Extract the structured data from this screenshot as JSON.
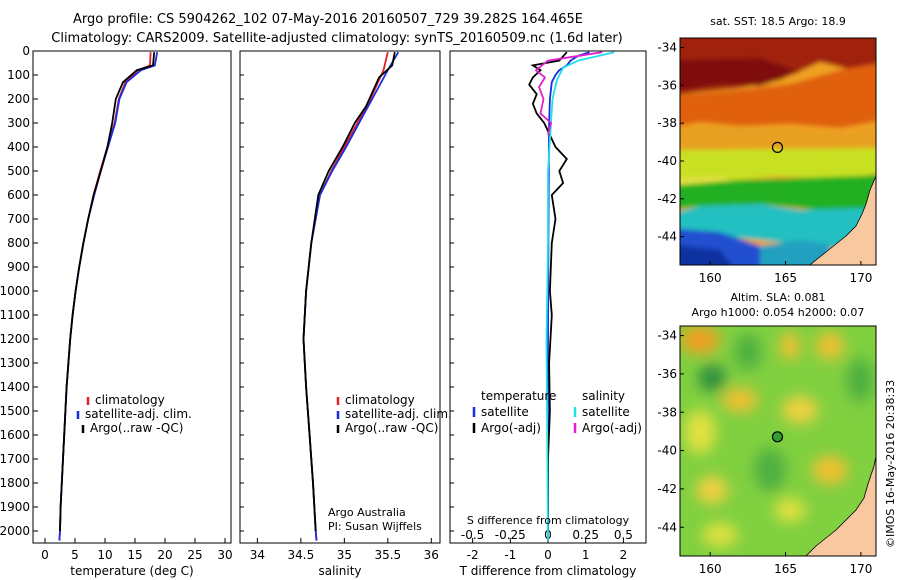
{
  "header": {
    "line1": "Argo profile: CS 5904262_102 07-May-2016 20160507_729 39.282S 164.465E",
    "line2": "Climatology: CARS2009. Satellite-adjusted climatology: synTS_20160509.nc (1.6d later)"
  },
  "colors": {
    "climatology": "#e0202a",
    "satellite": "#1a2de0",
    "argo": "#000000",
    "sat_salinity": "#20e0e8",
    "argo_salinity_adj": "#e020d0"
  },
  "chart_data": [
    {
      "type": "line",
      "panel": "temperature",
      "xlabel": "temperature (deg C)",
      "ylabel": "",
      "xlim": [
        -2,
        31
      ],
      "ylim": [
        2050,
        0
      ],
      "xticks": [
        0,
        5,
        10,
        15,
        20,
        25,
        30
      ],
      "yticks": [
        0,
        100,
        200,
        300,
        400,
        500,
        600,
        700,
        800,
        900,
        1000,
        1100,
        1200,
        1300,
        1400,
        1500,
        1600,
        1700,
        1800,
        1900,
        2000
      ],
      "legend": [
        "climatology",
        "satellite-adj. clim.",
        "Argo(..raw -QC)"
      ],
      "legend_position": "lower-center",
      "series": [
        {
          "name": "climatology",
          "color": "#e0202a",
          "points": [
            [
              17.6,
              5
            ],
            [
              17.5,
              60
            ],
            [
              15.5,
              80
            ],
            [
              13.4,
              130
            ],
            [
              12.3,
              200
            ],
            [
              11.6,
              300
            ],
            [
              10.4,
              400
            ],
            [
              9.2,
              500
            ],
            [
              8.1,
              600
            ],
            [
              7.2,
              700
            ],
            [
              6.4,
              800
            ],
            [
              5.7,
              900
            ],
            [
              5.1,
              1000
            ],
            [
              4.6,
              1100
            ],
            [
              4.2,
              1200
            ],
            [
              3.9,
              1300
            ],
            [
              3.6,
              1400
            ],
            [
              3.4,
              1500
            ],
            [
              3.2,
              1600
            ],
            [
              3.0,
              1700
            ],
            [
              2.8,
              1800
            ],
            [
              2.6,
              1900
            ],
            [
              2.5,
              2000
            ],
            [
              2.4,
              2040
            ]
          ]
        },
        {
          "name": "satellite-adj. clim.",
          "color": "#1a2de0",
          "points": [
            [
              18.7,
              5
            ],
            [
              18.3,
              60
            ],
            [
              16.0,
              80
            ],
            [
              13.6,
              130
            ],
            [
              12.4,
              200
            ],
            [
              11.7,
              300
            ],
            [
              10.5,
              400
            ],
            [
              9.3,
              500
            ],
            [
              8.2,
              600
            ],
            [
              7.2,
              700
            ],
            [
              6.4,
              800
            ],
            [
              5.7,
              900
            ],
            [
              5.1,
              1000
            ],
            [
              4.6,
              1100
            ],
            [
              4.2,
              1200
            ],
            [
              3.9,
              1300
            ],
            [
              3.6,
              1400
            ],
            [
              3.4,
              1500
            ],
            [
              3.2,
              1600
            ],
            [
              3.0,
              1700
            ],
            [
              2.8,
              1800
            ],
            [
              2.6,
              1900
            ],
            [
              2.5,
              2000
            ],
            [
              2.4,
              2040
            ]
          ]
        },
        {
          "name": "Argo(..raw -QC)",
          "color": "#000000",
          "points": [
            [
              18.2,
              5
            ],
            [
              18.0,
              60
            ],
            [
              15.3,
              80
            ],
            [
              13.0,
              130
            ],
            [
              11.8,
              200
            ],
            [
              11.2,
              300
            ],
            [
              10.4,
              400
            ],
            [
              9.3,
              500
            ],
            [
              8.1,
              600
            ],
            [
              7.2,
              700
            ],
            [
              6.4,
              800
            ],
            [
              5.7,
              900
            ],
            [
              5.1,
              1000
            ],
            [
              4.6,
              1100
            ],
            [
              4.2,
              1200
            ],
            [
              3.9,
              1300
            ],
            [
              3.6,
              1400
            ],
            [
              3.4,
              1500
            ],
            [
              3.2,
              1600
            ],
            [
              3.0,
              1700
            ],
            [
              2.8,
              1800
            ],
            [
              2.6,
              1900
            ],
            [
              2.5,
              2000
            ]
          ]
        }
      ]
    },
    {
      "type": "line",
      "panel": "salinity",
      "xlabel": "salinity",
      "ylabel": "",
      "xlim": [
        33.8,
        36.1
      ],
      "ylim": [
        2050,
        0
      ],
      "xticks": [
        34,
        34.5,
        35,
        35.5,
        36
      ],
      "legend": [
        "climatology",
        "satellite-adj. clim.",
        "Argo(..raw -QC)"
      ],
      "legend_position": "lower-right",
      "annotation": [
        "Argo Australia",
        "PI: Susan Wijffels"
      ],
      "series": [
        {
          "name": "climatology",
          "color": "#e0202a",
          "points": [
            [
              35.5,
              5
            ],
            [
              35.45,
              80
            ],
            [
              35.3,
              200
            ],
            [
              35.15,
              300
            ],
            [
              35.0,
              400
            ],
            [
              34.85,
              500
            ],
            [
              34.72,
              600
            ],
            [
              34.62,
              800
            ],
            [
              34.56,
              1000
            ],
            [
              34.53,
              1200
            ],
            [
              34.56,
              1400
            ],
            [
              34.6,
              1600
            ],
            [
              34.64,
              1800
            ],
            [
              34.67,
              2000
            ],
            [
              34.68,
              2040
            ]
          ]
        },
        {
          "name": "satellite-adj. clim.",
          "color": "#1a2de0",
          "points": [
            [
              35.62,
              5
            ],
            [
              35.5,
              80
            ],
            [
              35.32,
              200
            ],
            [
              35.17,
              300
            ],
            [
              35.02,
              400
            ],
            [
              34.86,
              500
            ],
            [
              34.72,
              600
            ],
            [
              34.62,
              800
            ],
            [
              34.56,
              1000
            ],
            [
              34.53,
              1200
            ],
            [
              34.56,
              1400
            ],
            [
              34.6,
              1600
            ],
            [
              34.64,
              1800
            ],
            [
              34.67,
              2000
            ],
            [
              34.68,
              2040
            ]
          ]
        },
        {
          "name": "Argo(..raw -QC)",
          "color": "#000000",
          "points": [
            [
              35.58,
              5
            ],
            [
              35.55,
              60
            ],
            [
              35.4,
              110
            ],
            [
              35.25,
              230
            ],
            [
              35.12,
              300
            ],
            [
              34.98,
              400
            ],
            [
              34.82,
              500
            ],
            [
              34.7,
              600
            ],
            [
              34.62,
              800
            ],
            [
              34.56,
              1000
            ],
            [
              34.53,
              1200
            ],
            [
              34.56,
              1400
            ],
            [
              34.6,
              1600
            ],
            [
              34.64,
              1800
            ],
            [
              34.67,
              2000
            ]
          ]
        }
      ]
    },
    {
      "type": "line",
      "panel": "difference",
      "xlabel": "T difference from climatology",
      "top_axis_label": "S difference from climatology",
      "xlim": [
        -2.6,
        2.6
      ],
      "ylim": [
        2050,
        0
      ],
      "xticks": [
        -2,
        -1,
        0,
        1,
        2
      ],
      "top_ticks": [
        "-0.5",
        "-0.25",
        "0",
        "0.25",
        "0.5"
      ],
      "legend_groups": [
        {
          "title": "temperature",
          "entries": [
            "satellite",
            "Argo(-adj)"
          ]
        },
        {
          "title": "salinity",
          "entries": [
            "satellite",
            "Argo(-adj)"
          ]
        }
      ],
      "series": [
        {
          "name": "temperature satellite",
          "color": "#1a2de0",
          "points": [
            [
              1.1,
              5
            ],
            [
              0.8,
              20
            ],
            [
              0.6,
              40
            ],
            [
              0.5,
              60
            ],
            [
              0.3,
              80
            ],
            [
              0.2,
              100
            ],
            [
              0.1,
              130
            ],
            [
              0.05,
              200
            ],
            [
              0.03,
              300
            ],
            [
              0.02,
              500
            ],
            [
              0.01,
              800
            ],
            [
              0.0,
              1200
            ],
            [
              0.0,
              2040
            ]
          ]
        },
        {
          "name": "temperature Argo(-adj)",
          "color": "#000000",
          "points": [
            [
              0.5,
              5
            ],
            [
              0.3,
              40
            ],
            [
              -0.4,
              60
            ],
            [
              -0.2,
              80
            ],
            [
              -0.4,
              110
            ],
            [
              -0.5,
              140
            ],
            [
              -0.3,
              180
            ],
            [
              -0.4,
              220
            ],
            [
              -0.3,
              260
            ],
            [
              -0.1,
              300
            ],
            [
              0.2,
              400
            ],
            [
              0.5,
              450
            ],
            [
              0.3,
              500
            ],
            [
              0.4,
              550
            ],
            [
              0.1,
              600
            ],
            [
              0.2,
              700
            ],
            [
              0.1,
              800
            ],
            [
              0.05,
              1000
            ],
            [
              0.1,
              1100
            ],
            [
              0.03,
              1300
            ],
            [
              0.05,
              1500
            ],
            [
              0.0,
              1700
            ],
            [
              0.0,
              2000
            ]
          ]
        },
        {
          "name": "salinity satellite",
          "color": "#20e0e8",
          "points": [
            [
              0.44,
              5
            ],
            [
              0.2,
              40
            ],
            [
              0.1,
              70
            ],
            [
              0.06,
              120
            ],
            [
              0.03,
              200
            ],
            [
              0.02,
              300
            ],
            [
              0.0,
              500
            ],
            [
              0.0,
              800
            ],
            [
              -0.01,
              1200
            ],
            [
              0.0,
              2040
            ]
          ]
        },
        {
          "name": "salinity Argo(-adj)",
          "color": "#e020d0",
          "points": [
            [
              0.36,
              5
            ],
            [
              0.0,
              40
            ],
            [
              -0.08,
              80
            ],
            [
              -0.02,
              110
            ],
            [
              -0.06,
              150
            ],
            [
              -0.03,
              200
            ],
            [
              -0.05,
              260
            ],
            [
              0.02,
              300
            ],
            [
              0.0,
              350
            ]
          ]
        }
      ]
    },
    {
      "type": "heatmap",
      "panel": "map-sst",
      "title": "sat. SST: 18.5 Argo: 18.9",
      "xticks": [
        160,
        165,
        170
      ],
      "yticks": [
        -34,
        -36,
        -38,
        -40,
        -42,
        -44
      ],
      "xlim": [
        158,
        171
      ],
      "ylim": [
        -45.5,
        -33.5
      ],
      "marker": {
        "lon": 164.465,
        "lat": -39.282
      }
    },
    {
      "type": "heatmap",
      "panel": "map-sla",
      "title_lines": [
        "Altim. SLA: 0.081",
        "Argo h1000: 0.054 h2000: 0.07"
      ],
      "xticks": [
        160,
        165,
        170
      ],
      "yticks": [
        -34,
        -36,
        -38,
        -40,
        -42,
        -44
      ],
      "xlim": [
        158,
        171
      ],
      "ylim": [
        -45.5,
        -33.5
      ],
      "marker": {
        "lon": 164.465,
        "lat": -39.282
      },
      "side_label": "©IMOS 16-May-2016 20:38:33"
    }
  ]
}
